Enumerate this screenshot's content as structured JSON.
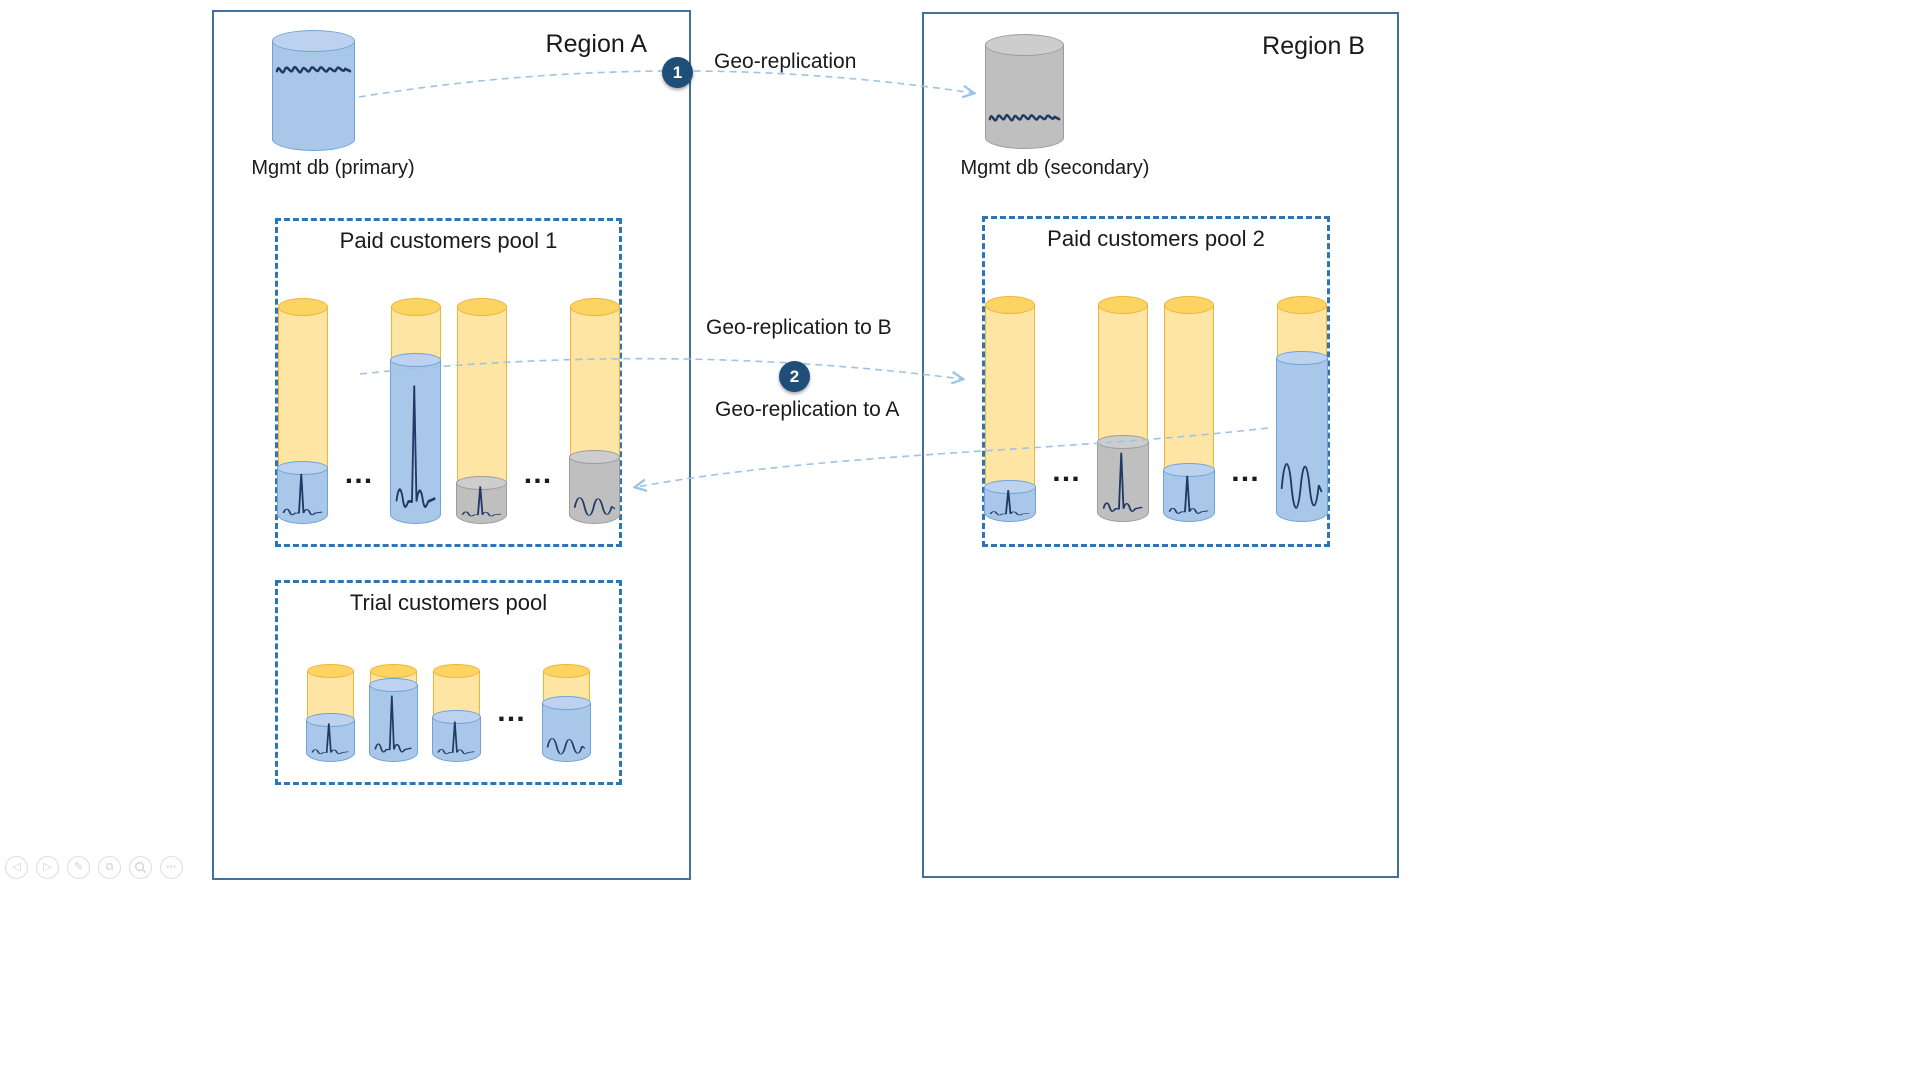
{
  "colors": {
    "region_border": "#41719C",
    "pool_border": "#2E75B6",
    "arrow": "#9DC3E6",
    "badge_bg": "#1F4E79",
    "badge_text": "#FFFFFF",
    "orange_body": "#FFE5A4",
    "orange_top": "#FCD462",
    "orange_border": "#F2B33D",
    "blue_body": "#A9C7E8",
    "blue_top": "#BCD2EE",
    "blue_border": "#6FA3D8",
    "gray_body": "#BFBFBF",
    "gray_top": "#CDCDCD",
    "gray_border": "#9C9C9C",
    "squiggle": "#1F3864",
    "text": "#1A1A1A"
  },
  "regions": [
    {
      "label": "Region A"
    },
    {
      "label": "Region B"
    }
  ],
  "mgmt_dbs": [
    {
      "label": "Mgmt db (primary)",
      "variant": "blue"
    },
    {
      "label": "Mgmt db (secondary)",
      "variant": "gray"
    }
  ],
  "arrows": {
    "geo1": {
      "badge": "1",
      "label": "Geo-replication"
    },
    "geo2": {
      "badge": "2",
      "label_to_b": "Geo-replication to B",
      "label_to_a": "Geo-replication to A"
    }
  },
  "pools": [
    {
      "id": "pool1",
      "title": "Paid customers pool 1",
      "items": [
        {
          "type": "cyl",
          "fill": 26,
          "variant": "blue",
          "wave": "spike"
        },
        {
          "type": "dots",
          "text": "…"
        },
        {
          "type": "cyl",
          "fill": 76,
          "variant": "blue",
          "wave": "spike"
        },
        {
          "type": "cyl",
          "fill": 19,
          "variant": "gray",
          "wave": "spike"
        },
        {
          "type": "dots",
          "text": "…"
        },
        {
          "type": "cyl",
          "fill": 31,
          "variant": "gray",
          "wave": "wave"
        }
      ]
    },
    {
      "id": "pool2",
      "title": "Paid customers pool 2",
      "items": [
        {
          "type": "cyl",
          "fill": 16,
          "variant": "blue",
          "wave": "spike"
        },
        {
          "type": "dots",
          "text": "…"
        },
        {
          "type": "cyl",
          "fill": 37,
          "variant": "gray",
          "wave": "spike"
        },
        {
          "type": "cyl",
          "fill": 24,
          "variant": "blue",
          "wave": "spike"
        },
        {
          "type": "dots",
          "text": "…"
        },
        {
          "type": "cyl",
          "fill": 76,
          "variant": "blue",
          "wave": "wave"
        }
      ]
    },
    {
      "id": "trial",
      "title": "Trial customers pool",
      "items": [
        {
          "type": "cyl",
          "fill": 47,
          "variant": "blue",
          "wave": "spike"
        },
        {
          "type": "cyl",
          "fill": 86,
          "variant": "blue",
          "wave": "spike"
        },
        {
          "type": "cyl",
          "fill": 50,
          "variant": "blue",
          "wave": "spike"
        },
        {
          "type": "dots",
          "text": "…"
        },
        {
          "type": "cyl",
          "fill": 66,
          "variant": "blue",
          "wave": "wave"
        }
      ]
    }
  ],
  "toolbar": {
    "buttons": [
      {
        "name": "previous",
        "glyph": "◁"
      },
      {
        "name": "next",
        "glyph": "▷"
      },
      {
        "name": "annotate",
        "glyph": "✎"
      },
      {
        "name": "copy",
        "glyph": "⧉"
      },
      {
        "name": "zoom",
        "glyph": ""
      },
      {
        "name": "more",
        "glyph": "•••"
      }
    ]
  }
}
